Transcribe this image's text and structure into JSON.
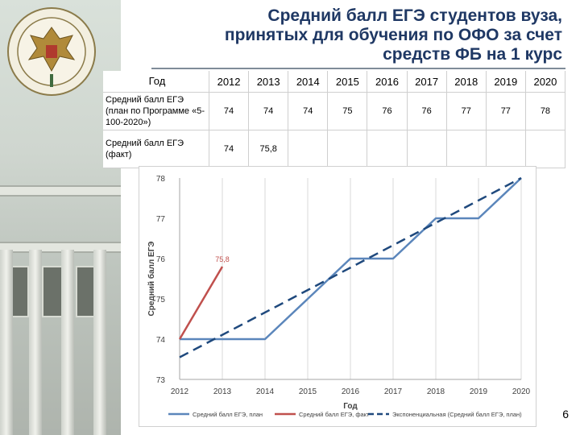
{
  "slide": {
    "title_lines": [
      "Средний балл ЕГЭ студентов вуза,",
      "принятых для обучения по ОФО за счет",
      "средств ФБ на 1 курс"
    ],
    "page_number": "6"
  },
  "table": {
    "header_label": "Год",
    "years": [
      "2012",
      "2013",
      "2014",
      "2015",
      "2016",
      "2017",
      "2018",
      "2019",
      "2020"
    ],
    "rows": [
      {
        "label": "Средний балл ЕГЭ (план по Программе «5-100-2020»)",
        "values": [
          "74",
          "74",
          "74",
          "75",
          "76",
          "76",
          "77",
          "77",
          "78"
        ]
      },
      {
        "label": "Средний балл ЕГЭ (факт)",
        "values": [
          "74",
          "75,8",
          "",
          "",
          "",
          "",
          "",
          "",
          ""
        ]
      }
    ]
  },
  "chart_data": {
    "type": "line",
    "x": [
      2012,
      2013,
      2014,
      2015,
      2016,
      2017,
      2018,
      2019,
      2020
    ],
    "xlabel": "Год",
    "ylabel": "Средний балл ЕГЭ",
    "ylim": [
      73,
      78
    ],
    "yticks": [
      "73",
      "74",
      "75",
      "76",
      "77",
      "78"
    ],
    "xticks": [
      "2012",
      "2013",
      "2014",
      "2015",
      "2016",
      "2017",
      "2018",
      "2019",
      "2020"
    ],
    "grid": "vertical",
    "legend_position": "bottom",
    "series": [
      {
        "name": "Средний балл ЕГЭ, план",
        "color": "#5b86bb",
        "style": "solid",
        "x": [
          2012,
          2013,
          2014,
          2015,
          2016,
          2017,
          2018,
          2019,
          2020
        ],
        "values": [
          74,
          74,
          74,
          75,
          76,
          76,
          77,
          77,
          78
        ]
      },
      {
        "name": "Средний балл ЕГЭ, факт",
        "color": "#c0504d",
        "style": "solid",
        "x": [
          2012,
          2013
        ],
        "values": [
          74,
          75.8
        ],
        "data_labels": [
          "",
          "75,8"
        ]
      },
      {
        "name": "Экспоненциальная (Средний балл ЕГЭ, план)",
        "color": "#1f497d",
        "style": "dashed",
        "x": [
          2012,
          2020
        ],
        "values": [
          73.55,
          78.0
        ]
      }
    ]
  }
}
